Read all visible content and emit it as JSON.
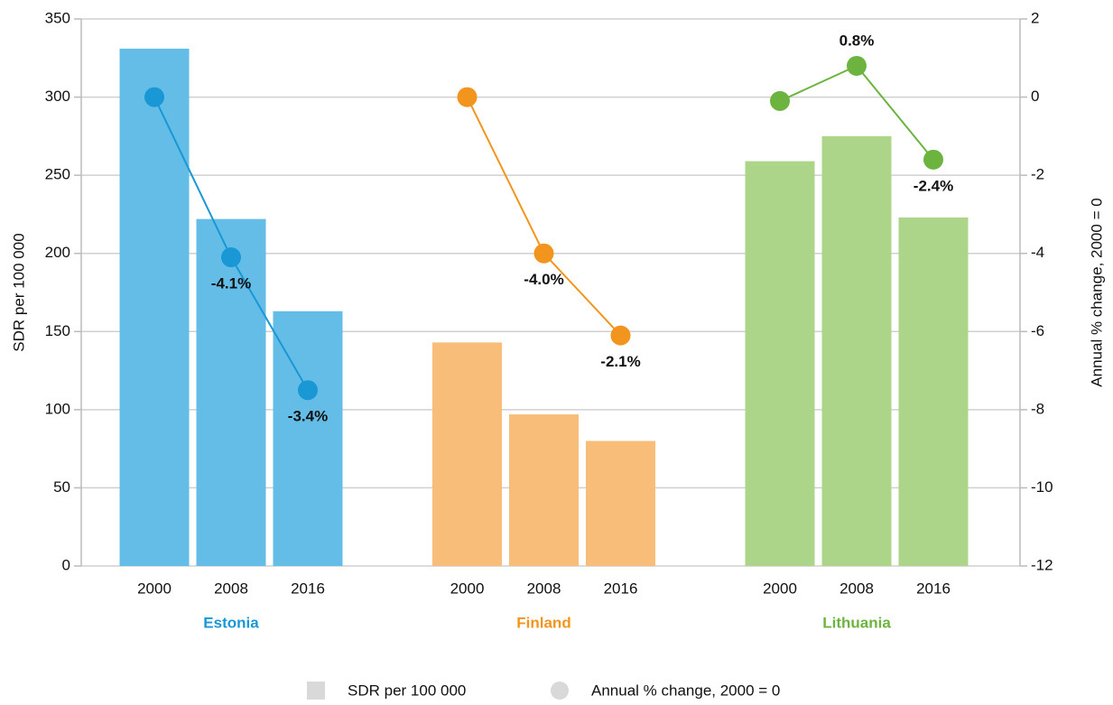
{
  "chart_data": {
    "type": "grouped_bar_line",
    "ylabel": "SDR per 100 000",
    "y2label": "Annual % change, 2000 = 0",
    "ylim": [
      0,
      350
    ],
    "yticks": [
      0,
      50,
      100,
      150,
      200,
      250,
      300,
      350
    ],
    "y2lim": [
      -12,
      2
    ],
    "y2ticks": [
      -12,
      -10,
      -8,
      -6,
      -4,
      -2,
      0,
      2
    ],
    "grid": true,
    "legend": [
      {
        "name": "SDR per 100 000",
        "shape": "square",
        "color": "#d9d9d9"
      },
      {
        "name": "Annual % change, 2000 = 0",
        "shape": "circle",
        "color": "#d9d9d9"
      }
    ],
    "groups": [
      {
        "name": "Estonia",
        "color": "#1a97d5",
        "bar_color": "#63bde6",
        "categories": [
          "2000",
          "2008",
          "2016"
        ],
        "bars": [
          331,
          222,
          163
        ],
        "line": [
          0,
          -4.1,
          -7.5
        ],
        "line_labels": [
          null,
          "-4.1%",
          "-3.4%"
        ]
      },
      {
        "name": "Finland",
        "color": "#f2951f",
        "bar_color": "#f8bd78",
        "categories": [
          "2000",
          "2008",
          "2016"
        ],
        "bars": [
          143,
          97,
          80
        ],
        "line": [
          0,
          -4.0,
          -6.1
        ],
        "line_labels": [
          null,
          "-4.0%",
          "-2.1%"
        ]
      },
      {
        "name": "Lithuania",
        "color": "#6db33f",
        "bar_color": "#add58a",
        "categories": [
          "2000",
          "2008",
          "2016"
        ],
        "bars": [
          259,
          275,
          223
        ],
        "line": [
          -0.1,
          0.8,
          -1.6
        ],
        "line_labels": [
          null,
          "0.8%",
          "-2.4%"
        ]
      }
    ]
  }
}
